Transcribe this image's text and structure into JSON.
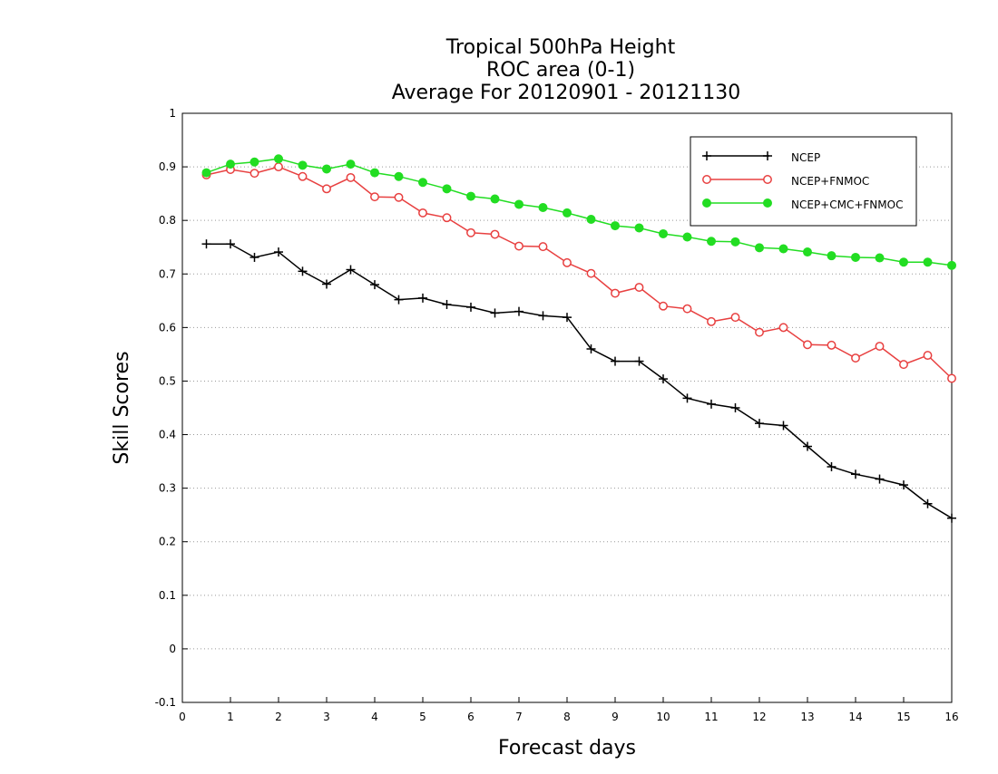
{
  "chart_data": {
    "type": "line",
    "title": [
      "Tropical 500hPa Height",
      "ROC area (0-1)",
      "Average For 20120901 - 20121130"
    ],
    "xlabel": "Forecast days",
    "ylabel": "Skill Scores",
    "xlim": [
      0,
      16
    ],
    "ylim": [
      -0.1,
      1
    ],
    "xticks": [
      0,
      1,
      2,
      3,
      4,
      5,
      6,
      7,
      8,
      9,
      10,
      11,
      12,
      13,
      14,
      15,
      16
    ],
    "yticks": [
      -0.1,
      0,
      0.1,
      0.2,
      0.3,
      0.4,
      0.5,
      0.6,
      0.7,
      0.8,
      0.9,
      1
    ],
    "ytick_labels": [
      "-0.1",
      "0",
      "0.1",
      "0.2",
      "0.3",
      "0.4",
      "0.5",
      "0.6",
      "0.7",
      "0.8",
      "0.9",
      "1"
    ],
    "grid": "horizontal-dotted",
    "legend_position": "top-right",
    "x": [
      0.5,
      1.0,
      1.5,
      2.0,
      2.5,
      3.0,
      3.5,
      4.0,
      4.5,
      5.0,
      5.5,
      6.0,
      6.5,
      7.0,
      7.5,
      8.0,
      8.5,
      9.0,
      9.5,
      10.0,
      10.5,
      11.0,
      11.5,
      12.0,
      12.5,
      13.0,
      13.5,
      14.0,
      14.5,
      15.0,
      15.5,
      16.0
    ],
    "series": [
      {
        "name": "NCEP",
        "color": "#000000",
        "marker": "plus",
        "values": [
          0.756,
          0.756,
          0.731,
          0.741,
          0.705,
          0.681,
          0.708,
          0.68,
          0.652,
          0.655,
          0.643,
          0.638,
          0.627,
          0.63,
          0.622,
          0.619,
          0.56,
          0.537,
          0.537,
          0.504,
          0.468,
          0.457,
          0.45,
          0.421,
          0.417,
          0.378,
          0.34,
          0.326,
          0.317,
          0.306,
          0.271,
          0.244
        ]
      },
      {
        "name": "NCEP+FNMOC",
        "color": "#e84040",
        "marker": "open-circle",
        "values": [
          0.885,
          0.895,
          0.888,
          0.9,
          0.882,
          0.859,
          0.88,
          0.844,
          0.843,
          0.814,
          0.805,
          0.777,
          0.774,
          0.752,
          0.751,
          0.721,
          0.701,
          0.664,
          0.675,
          0.64,
          0.635,
          0.611,
          0.619,
          0.591,
          0.6,
          0.568,
          0.567,
          0.543,
          0.565,
          0.531,
          0.548,
          0.505
        ]
      },
      {
        "name": "NCEP+CMC+FNMOC",
        "color": "#22dd22",
        "marker": "filled-circle",
        "values": [
          0.889,
          0.905,
          0.909,
          0.915,
          0.903,
          0.896,
          0.905,
          0.889,
          0.882,
          0.871,
          0.859,
          0.845,
          0.84,
          0.83,
          0.824,
          0.814,
          0.802,
          0.79,
          0.786,
          0.775,
          0.769,
          0.761,
          0.76,
          0.749,
          0.747,
          0.741,
          0.734,
          0.731,
          0.73,
          0.722,
          0.722,
          0.716
        ]
      }
    ]
  }
}
